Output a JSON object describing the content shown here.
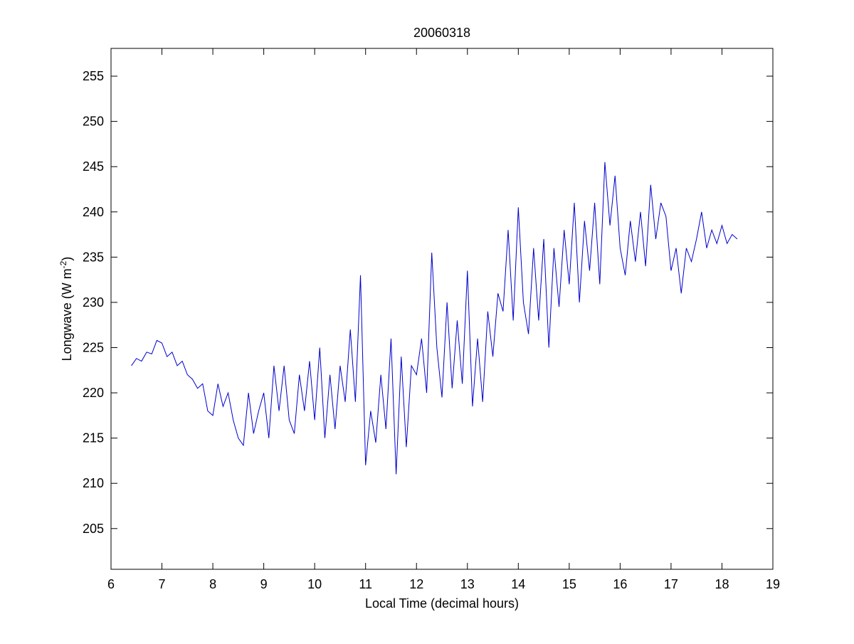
{
  "chart_data": {
    "type": "line",
    "title": "20060318",
    "xlabel": "Local Time (decimal hours)",
    "ylabel": {
      "text": "Longwave (W m",
      "sup": "-2",
      "end": ")"
    },
    "x": [
      6.4,
      6.5,
      6.6,
      6.7,
      6.8,
      6.9,
      7.0,
      7.1,
      7.2,
      7.3,
      7.4,
      7.5,
      7.6,
      7.7,
      7.8,
      7.9,
      8.0,
      8.1,
      8.2,
      8.3,
      8.4,
      8.5,
      8.6,
      8.7,
      8.8,
      8.9,
      9.0,
      9.1,
      9.2,
      9.3,
      9.4,
      9.5,
      9.6,
      9.7,
      9.8,
      9.9,
      10.0,
      10.1,
      10.2,
      10.3,
      10.4,
      10.5,
      10.6,
      10.7,
      10.8,
      10.9,
      11.0,
      11.1,
      11.2,
      11.3,
      11.4,
      11.5,
      11.6,
      11.7,
      11.8,
      11.9,
      12.0,
      12.1,
      12.2,
      12.3,
      12.4,
      12.5,
      12.6,
      12.7,
      12.8,
      12.9,
      13.0,
      13.1,
      13.2,
      13.3,
      13.4,
      13.5,
      13.6,
      13.7,
      13.8,
      13.9,
      14.0,
      14.1,
      14.2,
      14.3,
      14.4,
      14.5,
      14.6,
      14.7,
      14.8,
      14.9,
      15.0,
      15.1,
      15.2,
      15.3,
      15.4,
      15.5,
      15.6,
      15.7,
      15.8,
      15.9,
      16.0,
      16.1,
      16.2,
      16.3,
      16.4,
      16.5,
      16.6,
      16.7,
      16.8,
      16.9,
      17.0,
      17.1,
      17.2,
      17.3,
      17.4,
      17.5,
      17.6,
      17.7,
      17.8,
      17.9,
      18.0,
      18.1,
      18.2,
      18.3
    ],
    "series": [
      {
        "name": "Longwave",
        "color": "#0000cc",
        "values": [
          223,
          223.8,
          223.5,
          224.5,
          224.3,
          225.8,
          225.5,
          224,
          224.5,
          223,
          223.5,
          222,
          221.5,
          220.5,
          221,
          218,
          217.5,
          221,
          218.5,
          220,
          217,
          215,
          214.2,
          220,
          215.5,
          218,
          220,
          215,
          223,
          218,
          223,
          217,
          215.5,
          222,
          218,
          223.5,
          217,
          225,
          215,
          222,
          216,
          223,
          219,
          227,
          219,
          233,
          212,
          218,
          214.5,
          222,
          216,
          226,
          211,
          224,
          214,
          223,
          222,
          226,
          220,
          235.5,
          225,
          219.5,
          230,
          220.5,
          228,
          221,
          233.5,
          218.5,
          226,
          219,
          229,
          224,
          231,
          229,
          238,
          228,
          240.5,
          230,
          226.5,
          236,
          228,
          237,
          225,
          236,
          229.5,
          238,
          232,
          241,
          230,
          239,
          233.5,
          241,
          232,
          245.5,
          238.5,
          244,
          236,
          233,
          239,
          234.5,
          240,
          234,
          243,
          237,
          241,
          239.5,
          233.5,
          236,
          231,
          236,
          234.5,
          237,
          240,
          236,
          238,
          236.5,
          238.5,
          236.5,
          237.5,
          237
        ]
      }
    ],
    "xlim": [
      6,
      19
    ],
    "xticks": [
      6,
      7,
      8,
      9,
      10,
      11,
      12,
      13,
      14,
      15,
      16,
      17,
      18,
      19
    ],
    "ylim": [
      200.5,
      258.07
    ],
    "yticks": [
      205,
      210,
      215,
      220,
      225,
      230,
      235,
      240,
      245,
      250,
      255
    ]
  }
}
